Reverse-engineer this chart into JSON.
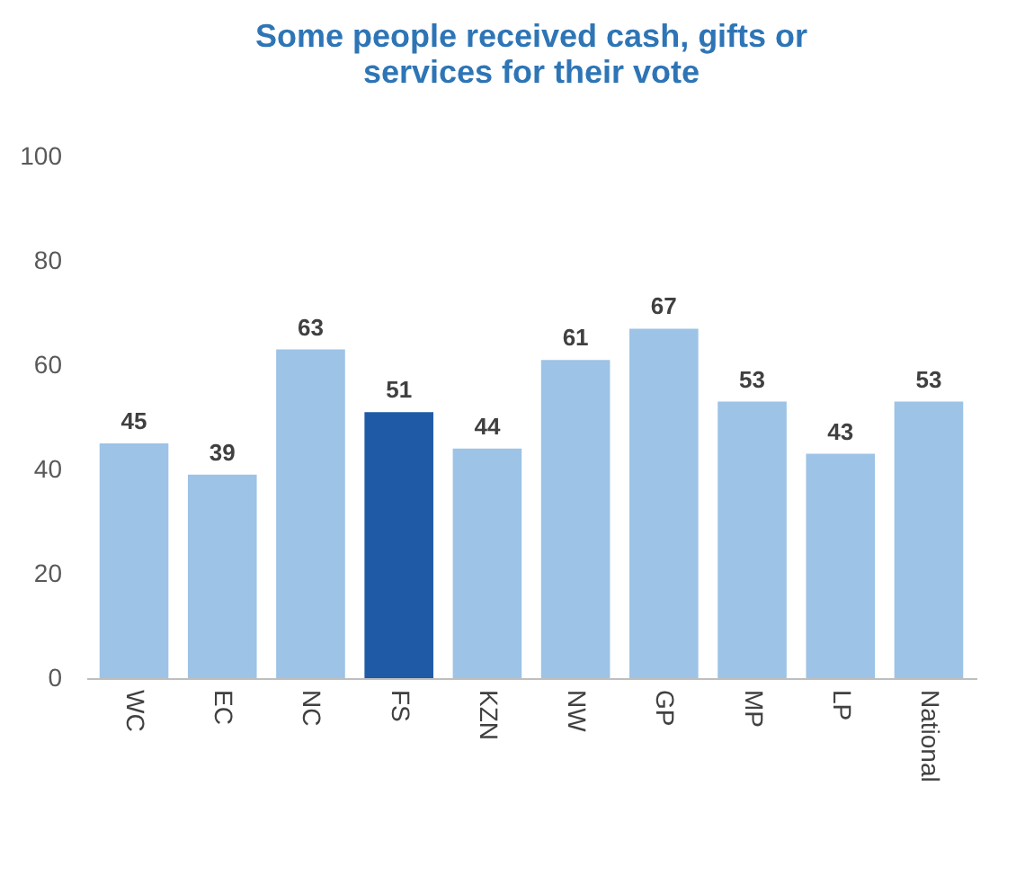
{
  "chart_data": {
    "type": "bar",
    "title": "Some people received cash, gifts or services for their vote",
    "categories": [
      "WC",
      "EC",
      "NC",
      "FS",
      "KZN",
      "NW",
      "GP",
      "MP",
      "LP",
      "National"
    ],
    "values": [
      45,
      39,
      63,
      51,
      44,
      61,
      67,
      53,
      43,
      53
    ],
    "colors": [
      "#9dc3e6",
      "#9dc3e6",
      "#9dc3e6",
      "#1f5aa6",
      "#9dc3e6",
      "#9dc3e6",
      "#9dc3e6",
      "#9dc3e6",
      "#9dc3e6",
      "#9dc3e6"
    ],
    "ylim": [
      0,
      100
    ],
    "yticks": [
      0,
      20,
      40,
      60,
      80,
      100
    ],
    "grid": false,
    "data_labels": true
  }
}
